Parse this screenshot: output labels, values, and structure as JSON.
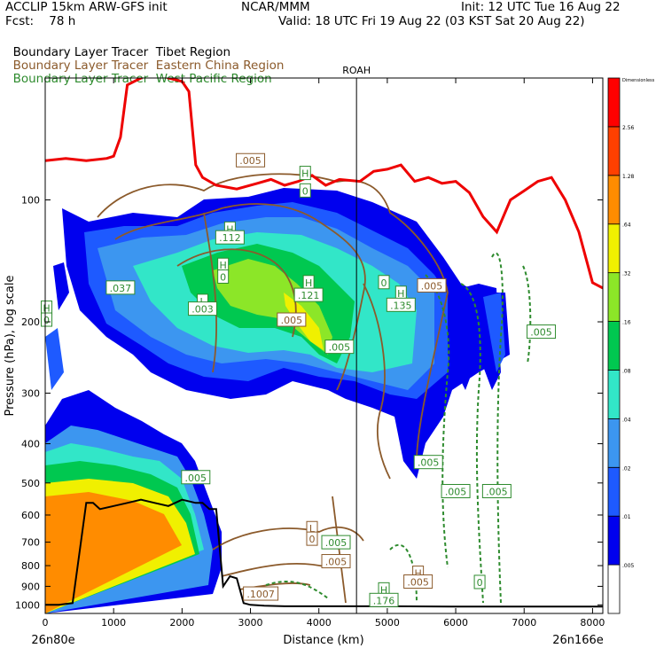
{
  "header": {
    "left_line1": "ACCLIP 15km ARW-GFS init",
    "left_line2": "Fcst:    78 h",
    "center_line1": "NCAR/MMM",
    "right_line1": "Init: 12 UTC Tue 16 Aug 22",
    "right_line2": "Valid: 18 UTC Fri 19 Aug 22 (03 KST Sat 20 Aug 22)"
  },
  "tracers": [
    {
      "label": "Boundary Layer Tracer",
      "region": "Tibet Region",
      "color": "#000000"
    },
    {
      "label": "Boundary Layer Tracer",
      "region": "Eastern China Region",
      "color": "#8b5a2b"
    },
    {
      "label": "Boundary Layer Tracer",
      "region": "West Pacific Region",
      "color": "#2e8b2e"
    }
  ],
  "marker": {
    "label": "ROAH"
  },
  "chart_data": {
    "type": "heatmap",
    "xlabel": "Distance (km)",
    "ylabel": "Pressure (hPa), log scale",
    "x_ticks": [
      0,
      1000,
      2000,
      3000,
      4000,
      5000,
      6000,
      7000,
      8000
    ],
    "y_ticks": [
      100,
      200,
      300,
      400,
      500,
      600,
      700,
      800,
      900,
      1000
    ],
    "xlim": [
      0,
      8150
    ],
    "ylim": [
      1050,
      50
    ],
    "y_scale": "log",
    "left_endpoint": "26n80e",
    "right_endpoint": "26n166e",
    "marker_x": 4550,
    "colorbar": {
      "title": "Dimensionless",
      "levels": [
        ".005",
        ".01",
        ".02",
        ".04",
        ".08",
        ".16",
        ".32",
        ".64",
        "1.28",
        "2.56"
      ],
      "colors": [
        "#ffffff",
        "#0000ee",
        "#1e5aff",
        "#3c96f0",
        "#32e6c8",
        "#00c850",
        "#8ce628",
        "#f0f000",
        "#ff8c00",
        "#ff4000",
        "#ff0000"
      ]
    },
    "tropopause": {
      "color": "#ee0000",
      "x": [
        0,
        300,
        600,
        900,
        1000,
        1100,
        1200,
        1400,
        1600,
        1800,
        2000,
        2100,
        2200,
        2300,
        2500,
        2800,
        3100,
        3300,
        3500,
        3700,
        3900,
        4100,
        4300,
        4600,
        4800,
        5000,
        5200,
        5400,
        5600,
        5800,
        6000,
        6200,
        6400,
        6600,
        6800,
        7000,
        7200,
        7400,
        7600,
        7800,
        8000,
        8150
      ],
      "p": [
        80,
        79,
        80,
        79,
        78,
        70,
        52,
        50,
        48,
        50,
        51,
        54,
        82,
        88,
        92,
        94,
        91,
        89,
        92,
        90,
        87,
        92,
        89,
        90,
        85,
        84,
        82,
        90,
        88,
        91,
        90,
        96,
        110,
        120,
        100,
        95,
        90,
        88,
        100,
        120,
        160,
        165
      ]
    },
    "terrain": {
      "color": "#000000",
      "x": [
        0,
        200,
        400,
        600,
        700,
        800,
        1000,
        1200,
        1400,
        1600,
        1800,
        2000,
        2200,
        2300,
        2400,
        2500,
        2600,
        2700,
        2800,
        2900,
        3000,
        3200,
        3500,
        4000,
        4500,
        5000,
        6000,
        7000,
        8150
      ],
      "p": [
        1000,
        1000,
        990,
        560,
        560,
        580,
        570,
        560,
        550,
        560,
        570,
        550,
        560,
        560,
        580,
        580,
        900,
        850,
        860,
        990,
        1000,
        1005,
        1008,
        1008,
        1008,
        1008,
        1010,
        1010,
        1010
      ]
    },
    "labels": [
      {
        "text": ".005",
        "x": 3000,
        "p": 80,
        "color": "#8b5a2b"
      },
      {
        "text": "H",
        "x": 3800,
        "p": 86,
        "color": "#2e8b2e"
      },
      {
        "text": "0",
        "x": 3800,
        "p": 95,
        "color": "#2e8b2e"
      },
      {
        "text": "H",
        "x": 2700,
        "p": 118,
        "color": "#2e8b2e"
      },
      {
        "text": ".112",
        "x": 2700,
        "p": 124,
        "color": "#2e8b2e"
      },
      {
        "text": "H",
        "x": 2600,
        "p": 145,
        "color": "#2e8b2e"
      },
      {
        "text": "0",
        "x": 2600,
        "p": 155,
        "color": "#2e8b2e"
      },
      {
        "text": "H",
        "x": 3850,
        "p": 160,
        "color": "#2e8b2e"
      },
      {
        "text": ".121",
        "x": 3850,
        "p": 172,
        "color": "#2e8b2e"
      },
      {
        "text": "0",
        "x": 4950,
        "p": 160,
        "color": "#2e8b2e"
      },
      {
        "text": ".005",
        "x": 5650,
        "p": 163,
        "color": "#8b5a2b"
      },
      {
        "text": "H",
        "x": 5200,
        "p": 170,
        "color": "#2e8b2e"
      },
      {
        "text": ".135",
        "x": 5200,
        "p": 182,
        "color": "#2e8b2e"
      },
      {
        "text": "L",
        "x": 2300,
        "p": 178,
        "color": "#2e8b2e"
      },
      {
        "text": ".003",
        "x": 2300,
        "p": 186,
        "color": "#2e8b2e"
      },
      {
        "text": ".005",
        "x": 3600,
        "p": 198,
        "color": "#8b5a2b"
      },
      {
        "text": ".005",
        "x": 4300,
        "p": 231,
        "color": "#2e8b2e"
      },
      {
        "text": ".005",
        "x": 7250,
        "p": 212,
        "color": "#2e8b2e"
      },
      {
        "text": ".037",
        "x": 1100,
        "p": 165,
        "color": "#2e8b2e"
      },
      {
        "text": "H",
        "x": 20,
        "p": 185,
        "color": "#2e8b2e"
      },
      {
        "text": "0",
        "x": 20,
        "p": 198,
        "color": "#2e8b2e"
      },
      {
        "text": ".005",
        "x": 5600,
        "p": 445,
        "color": "#2e8b2e"
      },
      {
        "text": ".005",
        "x": 2200,
        "p": 485,
        "color": "#2e8b2e"
      },
      {
        "text": ".005",
        "x": 6000,
        "p": 525,
        "color": "#2e8b2e"
      },
      {
        "text": ".005",
        "x": 6600,
        "p": 525,
        "color": "#2e8b2e"
      },
      {
        "text": "L",
        "x": 3900,
        "p": 648,
        "color": "#8b5a2b"
      },
      {
        "text": "0",
        "x": 3900,
        "p": 688,
        "color": "#8b5a2b"
      },
      {
        "text": ".005",
        "x": 4250,
        "p": 702,
        "color": "#2e8b2e"
      },
      {
        "text": ".005",
        "x": 4250,
        "p": 782,
        "color": "#8b5a2b"
      },
      {
        "text": "H",
        "x": 5450,
        "p": 835,
        "color": "#8b5a2b"
      },
      {
        "text": ".005",
        "x": 5450,
        "p": 878,
        "color": "#8b5a2b"
      },
      {
        "text": "0",
        "x": 6350,
        "p": 880,
        "color": "#2e8b2e"
      },
      {
        "text": ".1007",
        "x": 3150,
        "p": 940,
        "color": "#8b5a2b"
      },
      {
        "text": "H",
        "x": 4950,
        "p": 918,
        "color": "#2e8b2e"
      },
      {
        "text": ".176",
        "x": 4950,
        "p": 975,
        "color": "#2e8b2e"
      }
    ]
  }
}
